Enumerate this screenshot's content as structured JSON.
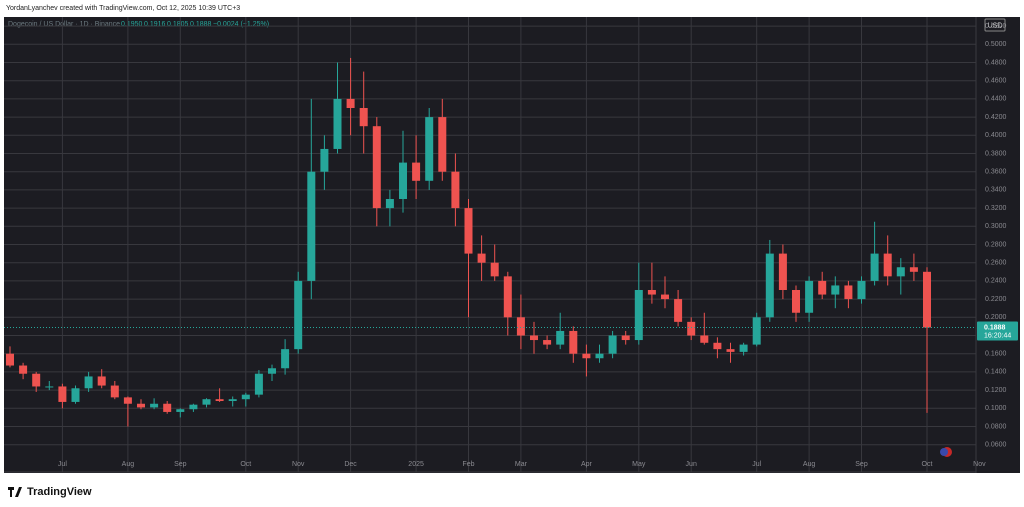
{
  "header": "YordanLyanchev created with TradingView.com, Oct 12, 2025 10:39 UTC+3",
  "brand": "TradingView",
  "chart_data": {
    "type": "candlestick",
    "symbol": "Dogecoin / US Dollar · 1D · Binance",
    "ohlc_legend": [
      "0.1950",
      "0.1916",
      "0.1805",
      "0.1888"
    ],
    "change": "−0.0024 (−1.25%)",
    "currency": "USD",
    "last_price": 0.1888,
    "countdown": "16:20:44",
    "up_color": "#26a69a",
    "down_color": "#ef5350",
    "grid": true,
    "categories": [
      null,
      null,
      null,
      null,
      "Jul",
      null,
      null,
      null,
      null,
      "Aug",
      null,
      null,
      null,
      "Sep",
      null,
      null,
      null,
      null,
      "Oct",
      null,
      null,
      null,
      "Nov",
      null,
      null,
      null,
      "Dec",
      null,
      null,
      null,
      null,
      "2025",
      null,
      null,
      null,
      "Feb",
      null,
      null,
      null,
      "Mar",
      null,
      null,
      null,
      null,
      "Apr",
      null,
      null,
      null,
      "May",
      null,
      null,
      null,
      "Jun",
      null,
      null,
      null,
      null,
      "Jul",
      null,
      null,
      null,
      "Aug",
      null,
      null,
      null,
      "Sep",
      null,
      null,
      null,
      null,
      "Oct",
      null,
      null,
      null,
      "Nov"
    ],
    "open": [
      0.16,
      0.147,
      0.138,
      0.124,
      0.124,
      0.107,
      0.122,
      0.135,
      0.125,
      0.112,
      0.105,
      0.101,
      0.105,
      0.096,
      0.099,
      0.104,
      0.11,
      0.108,
      0.11,
      0.115,
      0.138,
      0.144,
      0.165,
      0.24,
      0.36,
      0.385,
      0.44,
      0.43,
      0.41,
      0.32,
      0.33,
      0.37,
      0.35,
      0.42,
      0.36,
      0.32,
      0.27,
      0.26,
      0.245,
      0.2,
      0.18,
      0.175,
      0.17,
      0.185,
      0.16,
      0.155,
      0.16,
      0.18,
      0.175,
      0.23,
      0.225,
      0.22,
      0.195,
      0.18,
      0.172,
      0.165,
      0.162,
      0.17,
      0.2,
      0.27,
      0.23,
      0.205,
      0.24,
      0.225,
      0.235,
      0.22,
      0.24,
      0.27,
      0.245,
      0.255,
      0.25,
      null,
      null,
      null,
      null
    ],
    "high": [
      0.168,
      0.15,
      0.14,
      0.13,
      0.127,
      0.125,
      0.14,
      0.143,
      0.13,
      0.113,
      0.11,
      0.111,
      0.108,
      0.1,
      0.105,
      0.111,
      0.122,
      0.113,
      0.117,
      0.142,
      0.148,
      0.176,
      0.25,
      0.44,
      0.4,
      0.48,
      0.485,
      0.47,
      0.42,
      0.34,
      0.405,
      0.4,
      0.43,
      0.44,
      0.38,
      0.33,
      0.29,
      0.28,
      0.25,
      0.225,
      0.195,
      0.18,
      0.205,
      0.19,
      0.17,
      0.17,
      0.185,
      0.185,
      0.26,
      0.26,
      0.245,
      0.23,
      0.2,
      0.205,
      0.178,
      0.172,
      0.172,
      0.205,
      0.285,
      0.28,
      0.235,
      0.245,
      0.25,
      0.245,
      0.24,
      0.245,
      0.305,
      0.29,
      0.265,
      0.27,
      0.255,
      null,
      null,
      null,
      null
    ],
    "low": [
      0.145,
      0.132,
      0.118,
      0.12,
      0.1,
      0.105,
      0.118,
      0.122,
      0.11,
      0.08,
      0.099,
      0.099,
      0.094,
      0.09,
      0.096,
      0.101,
      0.107,
      0.102,
      0.102,
      0.112,
      0.13,
      0.137,
      0.16,
      0.22,
      0.34,
      0.38,
      0.4,
      0.38,
      0.3,
      0.3,
      0.315,
      0.33,
      0.34,
      0.35,
      0.3,
      0.2,
      0.24,
      0.24,
      0.18,
      0.165,
      0.16,
      0.165,
      0.165,
      0.15,
      0.135,
      0.15,
      0.155,
      0.17,
      0.17,
      0.215,
      0.21,
      0.19,
      0.175,
      0.17,
      0.155,
      0.15,
      0.158,
      0.168,
      0.195,
      0.22,
      0.195,
      0.195,
      0.22,
      0.21,
      0.21,
      0.215,
      0.235,
      0.235,
      0.225,
      0.24,
      0.095,
      null,
      null,
      null,
      null
    ],
    "close": [
      0.147,
      0.138,
      0.124,
      0.124,
      0.107,
      0.122,
      0.135,
      0.125,
      0.112,
      0.105,
      0.101,
      0.105,
      0.096,
      0.099,
      0.104,
      0.11,
      0.108,
      0.11,
      0.115,
      0.138,
      0.144,
      0.165,
      0.24,
      0.36,
      0.385,
      0.44,
      0.43,
      0.41,
      0.32,
      0.33,
      0.37,
      0.35,
      0.42,
      0.36,
      0.32,
      0.27,
      0.26,
      0.245,
      0.2,
      0.18,
      0.175,
      0.17,
      0.185,
      0.16,
      0.155,
      0.16,
      0.18,
      0.175,
      0.23,
      0.225,
      0.22,
      0.195,
      0.18,
      0.172,
      0.165,
      0.162,
      0.17,
      0.2,
      0.27,
      0.23,
      0.205,
      0.24,
      0.225,
      0.235,
      0.22,
      0.24,
      0.27,
      0.245,
      0.255,
      0.25,
      0.1888,
      null,
      null,
      null,
      null
    ],
    "ylim": [
      0.03,
      0.53
    ],
    "yticks": [
      {
        "value": 0.06,
        "label": "0.0600"
      },
      {
        "value": 0.08,
        "label": "0.0800"
      },
      {
        "value": 0.1,
        "label": "0.1000"
      },
      {
        "value": 0.12,
        "label": "0.1200"
      },
      {
        "value": 0.14,
        "label": "0.1400"
      },
      {
        "value": 0.16,
        "label": "0.1600"
      },
      {
        "value": 0.18,
        "label": "0.1800"
      },
      {
        "value": 0.2,
        "label": "0.2000"
      },
      {
        "value": 0.22,
        "label": "0.2200"
      },
      {
        "value": 0.24,
        "label": "0.2400"
      },
      {
        "value": 0.26,
        "label": "0.2600"
      },
      {
        "value": 0.28,
        "label": "0.2800"
      },
      {
        "value": 0.3,
        "label": "0.3000"
      },
      {
        "value": 0.32,
        "label": "0.3200"
      },
      {
        "value": 0.34,
        "label": "0.3400"
      },
      {
        "value": 0.36,
        "label": "0.3600"
      },
      {
        "value": 0.38,
        "label": "0.3800"
      },
      {
        "value": 0.4,
        "label": "0.4000"
      },
      {
        "value": 0.42,
        "label": "0.4200"
      },
      {
        "value": 0.44,
        "label": "0.4400"
      },
      {
        "value": 0.46,
        "label": "0.4600"
      },
      {
        "value": 0.48,
        "label": "0.4800"
      },
      {
        "value": 0.5,
        "label": "0.5000"
      },
      {
        "value": 0.52,
        "label": "0.5200"
      }
    ]
  }
}
